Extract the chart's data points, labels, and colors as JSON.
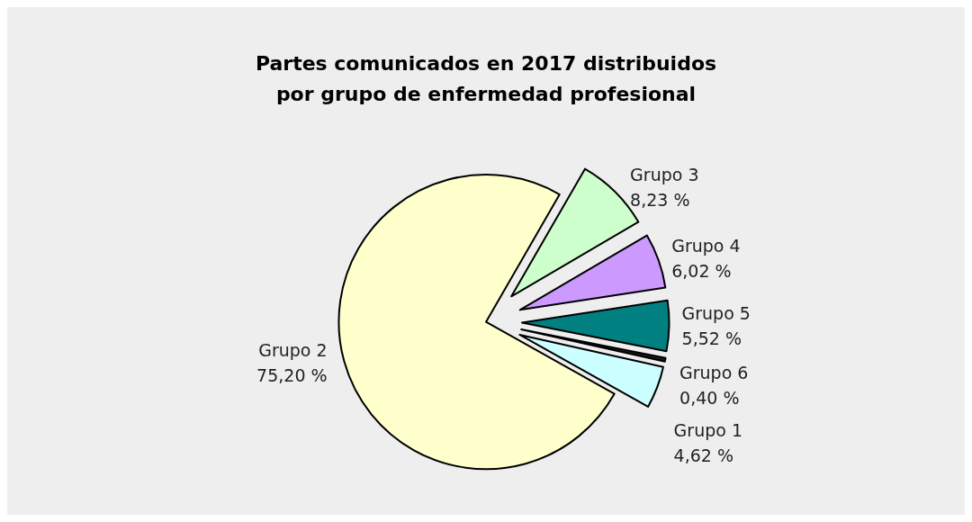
{
  "chart_data": {
    "type": "pie",
    "title": "Partes comunicados en 2017 distribuidos\npor grupo de enfermedad profesional",
    "categories": [
      "Grupo 3",
      "Grupo 4",
      "Grupo 5",
      "Grupo 6",
      "Grupo 1",
      "Grupo 2"
    ],
    "values": [
      8.23,
      6.02,
      5.52,
      0.4,
      4.62,
      75.2
    ],
    "value_labels": [
      "8,23 %",
      "6,02 %",
      "5,52 %",
      "0,40 %",
      "4,62 %",
      "75,20 %"
    ],
    "colors": [
      "#ccffcc",
      "#cc99ff",
      "#008080",
      "#1a1a1a",
      "#ccffff",
      "#ffffcc"
    ],
    "legend": false
  }
}
